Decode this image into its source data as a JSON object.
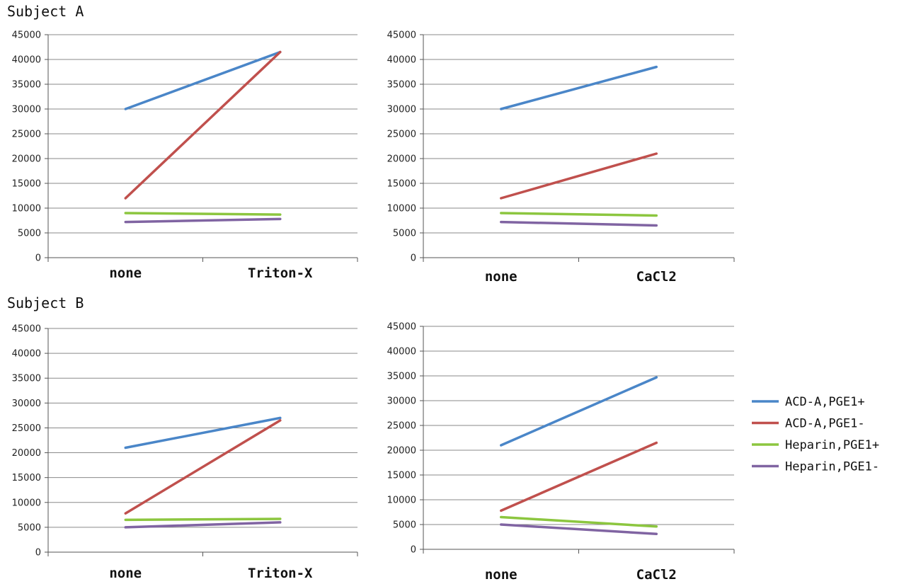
{
  "groups": {
    "subject_a": "Subject A",
    "subject_b": "Subject B"
  },
  "colors": {
    "ACD-A,PGE1+": "#4a86c8",
    "ACD-A,PGE1-": "#c0504d",
    "Heparin,PGE1+": "#8cc63f",
    "Heparin,PGE1-": "#8064a2",
    "grid": "#8a8a8a"
  },
  "legend": {
    "items": [
      "ACD-A,PGE1+",
      "ACD-A,PGE1-",
      "Heparin,PGE1+",
      "Heparin,PGE1-"
    ],
    "placement": "right"
  },
  "chart_data": [
    {
      "type": "line",
      "group": "Subject A",
      "categories": [
        "none",
        "Triton-X"
      ],
      "yticks": [
        "0",
        "5000",
        "10000",
        "15000",
        "20000",
        "25000",
        "30000",
        "35000",
        "40000",
        "45000"
      ],
      "ylim": [
        0,
        45000
      ],
      "grid": true,
      "series": [
        {
          "name": "ACD-A,PGE1+",
          "values": [
            30000,
            41500
          ]
        },
        {
          "name": "ACD-A,PGE1-",
          "values": [
            12000,
            41500
          ]
        },
        {
          "name": "Heparin,PGE1+",
          "values": [
            9000,
            8700
          ]
        },
        {
          "name": "Heparin,PGE1-",
          "values": [
            7200,
            7800
          ]
        }
      ]
    },
    {
      "type": "line",
      "group": "Subject A",
      "categories": [
        "none",
        "CaCl2"
      ],
      "yticks": [
        "0",
        "5000",
        "10000",
        "15000",
        "20000",
        "25000",
        "30000",
        "35000",
        "40000",
        "45000"
      ],
      "ylim": [
        0,
        45000
      ],
      "grid": true,
      "series": [
        {
          "name": "ACD-A,PGE1+",
          "values": [
            30000,
            38500
          ]
        },
        {
          "name": "ACD-A,PGE1-",
          "values": [
            12000,
            21000
          ]
        },
        {
          "name": "Heparin,PGE1+",
          "values": [
            9000,
            8500
          ]
        },
        {
          "name": "Heparin,PGE1-",
          "values": [
            7200,
            6500
          ]
        }
      ]
    },
    {
      "type": "line",
      "group": "Subject B",
      "categories": [
        "none",
        "Triton-X"
      ],
      "yticks": [
        "0",
        "5000",
        "10000",
        "15000",
        "20000",
        "25000",
        "30000",
        "35000",
        "40000",
        "45000"
      ],
      "ylim": [
        0,
        45000
      ],
      "grid": true,
      "series": [
        {
          "name": "ACD-A,PGE1+",
          "values": [
            21000,
            27000
          ]
        },
        {
          "name": "ACD-A,PGE1-",
          "values": [
            7800,
            26500
          ]
        },
        {
          "name": "Heparin,PGE1+",
          "values": [
            6500,
            6700
          ]
        },
        {
          "name": "Heparin,PGE1-",
          "values": [
            5000,
            6000
          ]
        }
      ]
    },
    {
      "type": "line",
      "group": "Subject B",
      "categories": [
        "none",
        "CaCl2"
      ],
      "yticks": [
        "0",
        "5000",
        "10000",
        "15000",
        "20000",
        "25000",
        "30000",
        "35000",
        "40000",
        "45000"
      ],
      "ylim": [
        0,
        45000
      ],
      "grid": true,
      "series": [
        {
          "name": "ACD-A,PGE1+",
          "values": [
            21000,
            34700
          ]
        },
        {
          "name": "ACD-A,PGE1-",
          "values": [
            7800,
            21500
          ]
        },
        {
          "name": "Heparin,PGE1+",
          "values": [
            6500,
            4600
          ]
        },
        {
          "name": "Heparin,PGE1-",
          "values": [
            5000,
            3100
          ]
        }
      ]
    }
  ]
}
